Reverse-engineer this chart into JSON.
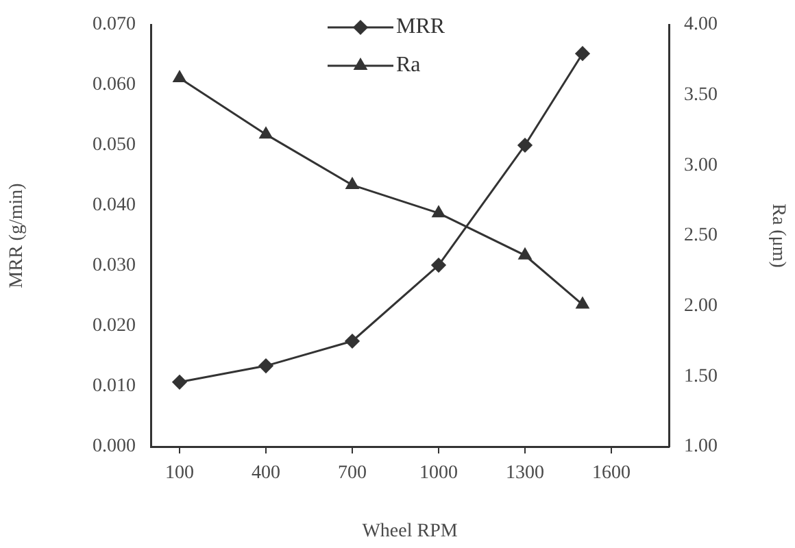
{
  "chart_data": {
    "type": "line",
    "xlabel": "Wheel RPM",
    "ylabel": "MRR (g/min)",
    "y2label": "Ra (μm)",
    "x": [
      100,
      400,
      700,
      1000,
      1300,
      1500
    ],
    "xlim": [
      0,
      1800
    ],
    "xticks": [
      100,
      400,
      700,
      1000,
      1300,
      1600
    ],
    "ylim": [
      0,
      0.07
    ],
    "yticks": [
      {
        "value": 0,
        "label": "0.000"
      },
      {
        "value": 0.01,
        "label": "0.010"
      },
      {
        "value": 0.02,
        "label": "0.020"
      },
      {
        "value": 0.03,
        "label": "0.030"
      },
      {
        "value": 0.04,
        "label": "0.040"
      },
      {
        "value": 0.05,
        "label": "0.050"
      },
      {
        "value": 0.06,
        "label": "0.060"
      },
      {
        "value": 0.07,
        "label": "0.070"
      }
    ],
    "y2lim": [
      1,
      4
    ],
    "y2ticks": [
      {
        "value": 1,
        "label": "1.00"
      },
      {
        "value": 1.5,
        "label": "1.50"
      },
      {
        "value": 2,
        "label": "2.00"
      },
      {
        "value": 2.5,
        "label": "2.50"
      },
      {
        "value": 3,
        "label": "3.00"
      },
      {
        "value": 3.5,
        "label": "3.50"
      },
      {
        "value": 4,
        "label": "4.00"
      }
    ],
    "legend": "top",
    "grid": false,
    "line_style": "solid",
    "series": [
      {
        "name": "MRR",
        "color": "#333333",
        "marker": "diamond",
        "values": [
          0.0107,
          0.0134,
          0.0175,
          0.0301,
          0.05,
          0.0652
        ]
      },
      {
        "name": "Ra",
        "color": "#333333",
        "marker": "triangle",
        "axis": "y2",
        "values": [
          3.62,
          3.22,
          2.86,
          2.66,
          2.36,
          2.01
        ]
      }
    ]
  }
}
